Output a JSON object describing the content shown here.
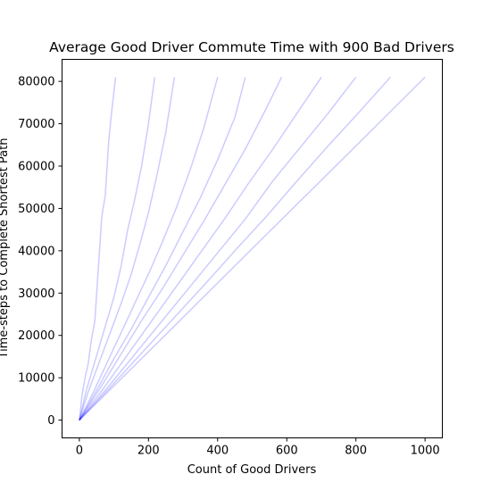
{
  "chart_data": {
    "type": "line",
    "title": "Average Good Driver Commute Time with 900 Bad Drivers",
    "xlabel": "Count of Good Drivers",
    "ylabel": "Time-steps to Complete Shortest Path",
    "xlim": [
      -50,
      1050
    ],
    "ylim": [
      -4200,
      85200
    ],
    "xticks": [
      0,
      200,
      400,
      600,
      800,
      1000
    ],
    "yticks": [
      0,
      10000,
      20000,
      30000,
      40000,
      50000,
      60000,
      70000,
      80000
    ],
    "grid": false,
    "legend": "none",
    "line_color": "#0000ff",
    "line_opacity": 0.2,
    "series": [
      {
        "x": [
          0,
          8,
          16,
          25,
          35,
          45,
          55,
          65,
          75,
          85,
          95,
          105
        ],
        "y": [
          0,
          6000,
          9800,
          13000,
          19000,
          23500,
          36000,
          48000,
          53000,
          66000,
          74000,
          81000
        ]
      },
      {
        "x": [
          0,
          20,
          40,
          60,
          80,
          100,
          120,
          140,
          160,
          180,
          200,
          218
        ],
        "y": [
          0,
          7000,
          12500,
          18000,
          23500,
          29000,
          36000,
          45000,
          52000,
          60000,
          70000,
          81000
        ]
      },
      {
        "x": [
          0,
          25,
          50,
          75,
          100,
          125,
          150,
          175,
          200,
          225,
          250,
          275
        ],
        "y": [
          0,
          6500,
          12000,
          17500,
          23000,
          28500,
          34500,
          41500,
          49000,
          58000,
          68000,
          81000
        ]
      },
      {
        "x": [
          0,
          40,
          80,
          120,
          160,
          200,
          240,
          280,
          320,
          360,
          400
        ],
        "y": [
          0,
          6500,
          13500,
          20500,
          27500,
          34500,
          42000,
          50000,
          59000,
          69000,
          81000
        ]
      },
      {
        "x": [
          0,
          50,
          100,
          150,
          200,
          250,
          300,
          350,
          400,
          450,
          480
        ],
        "y": [
          0,
          7000,
          14500,
          21500,
          29000,
          36500,
          44500,
          52500,
          61500,
          71500,
          81000
        ]
      },
      {
        "x": [
          0,
          60,
          120,
          180,
          240,
          300,
          360,
          420,
          480,
          540,
          585
        ],
        "y": [
          0,
          7500,
          15500,
          23500,
          31000,
          39000,
          47000,
          55500,
          64000,
          73500,
          81000
        ]
      },
      {
        "x": [
          0,
          70,
          140,
          210,
          280,
          350,
          420,
          490,
          560,
          630,
          700
        ],
        "y": [
          0,
          7500,
          15500,
          23500,
          31500,
          39500,
          47500,
          56000,
          64000,
          72500,
          81000
        ]
      },
      {
        "x": [
          0,
          80,
          160,
          240,
          320,
          400,
          480,
          560,
          640,
          720,
          800
        ],
        "y": [
          0,
          7500,
          15500,
          23500,
          31500,
          39500,
          47500,
          56500,
          64500,
          72500,
          81000
        ]
      },
      {
        "x": [
          0,
          90,
          180,
          270,
          360,
          450,
          540,
          630,
          720,
          810,
          900
        ],
        "y": [
          0,
          7800,
          15800,
          23800,
          31800,
          40000,
          48000,
          56500,
          64800,
          72800,
          81000
        ]
      },
      {
        "x": [
          0,
          250,
          500,
          750,
          1000
        ],
        "y": [
          0,
          20200,
          40500,
          60700,
          81000
        ]
      }
    ]
  }
}
